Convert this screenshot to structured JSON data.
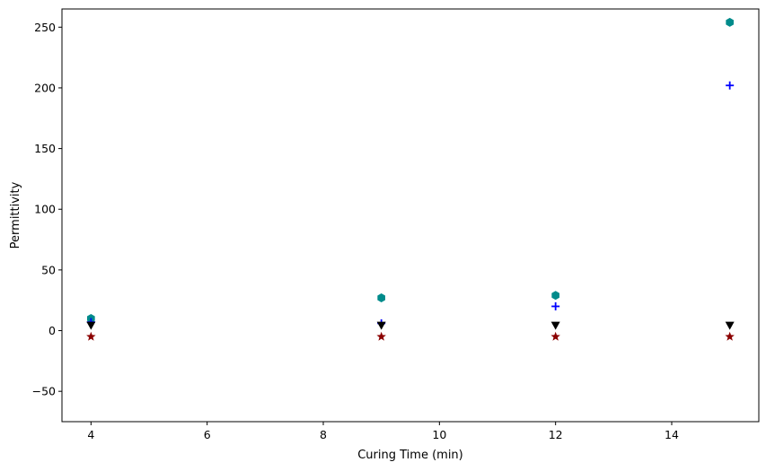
{
  "chart_data": {
    "type": "scatter",
    "title": "",
    "xlabel": "Curing Time (min)",
    "ylabel": "Permittivity",
    "xlim": [
      3.5,
      15.5
    ],
    "ylim": [
      -75,
      265
    ],
    "xticks": [
      4,
      6,
      8,
      10,
      12,
      14
    ],
    "yticks": [
      -50,
      0,
      50,
      100,
      150,
      200,
      250
    ],
    "xtick_labels": [
      "4",
      "6",
      "8",
      "10",
      "12",
      "14"
    ],
    "ytick_labels": [
      "−50",
      "0",
      "50",
      "100",
      "150",
      "200",
      "250"
    ],
    "grid": false,
    "x": [
      4,
      9,
      12,
      15
    ],
    "series": [
      {
        "marker": "hexagon",
        "color": "#008b8b",
        "values": [
          10,
          27,
          29,
          254
        ]
      },
      {
        "marker": "plus",
        "color": "#0000ff",
        "values": [
          7,
          6,
          20,
          202
        ]
      },
      {
        "marker": "triangle-down",
        "color": "#000000",
        "values": [
          4,
          4,
          4,
          4
        ]
      },
      {
        "marker": "star",
        "color": "#8b0000",
        "values": [
          -5,
          -5,
          -5,
          -5
        ]
      }
    ]
  }
}
